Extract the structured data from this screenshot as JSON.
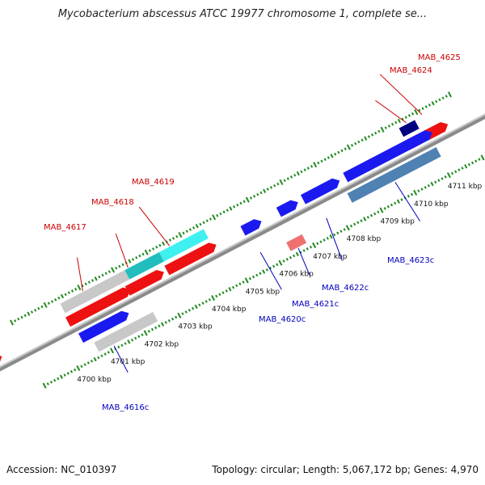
{
  "title": "Mycobacterium abscessus ATCC 19977 chromosome 1, complete se...",
  "footer": {
    "accession": "Accession: NC_010397",
    "summary": "Topology: circular; Length: 5,067,172 bp; Genes: 4,970"
  },
  "colors": {
    "backbone": "#8a8a8a",
    "tick": "#1f8a1f",
    "label_forward": "#cc0000",
    "label_reverse": "#0000bb"
  },
  "scale_ticks": [
    {
      "label": "4700 kbp",
      "kbp": 4700
    },
    {
      "label": "4701 kbp",
      "kbp": 4701
    },
    {
      "label": "4702 kbp",
      "kbp": 4702
    },
    {
      "label": "4703 kbp",
      "kbp": 4703
    },
    {
      "label": "4704 kbp",
      "kbp": 4704
    },
    {
      "label": "4705 kbp",
      "kbp": 4705
    },
    {
      "label": "4706 kbp",
      "kbp": 4706
    },
    {
      "label": "4707 kbp",
      "kbp": 4707
    },
    {
      "label": "4708 kbp",
      "kbp": 4708
    },
    {
      "label": "4709 kbp",
      "kbp": 4709
    },
    {
      "label": "4710 kbp",
      "kbp": 4710
    },
    {
      "label": "4711 kbp",
      "kbp": 4711
    }
  ],
  "gene_labels": [
    {
      "text": "MAB_4617",
      "strand": "forward"
    },
    {
      "text": "MAB_4618",
      "strand": "forward"
    },
    {
      "text": "MAB_4619",
      "strand": "forward"
    },
    {
      "text": "MAB_4624",
      "strand": "forward"
    },
    {
      "text": "MAB_4625",
      "strand": "forward"
    },
    {
      "text": "MAB_4616c",
      "strand": "reverse"
    },
    {
      "text": "MAB_4620c",
      "strand": "reverse"
    },
    {
      "text": "MAB_4621c",
      "strand": "reverse"
    },
    {
      "text": "MAB_4622c",
      "strand": "reverse"
    },
    {
      "text": "MAB_4623c",
      "strand": "reverse"
    }
  ]
}
